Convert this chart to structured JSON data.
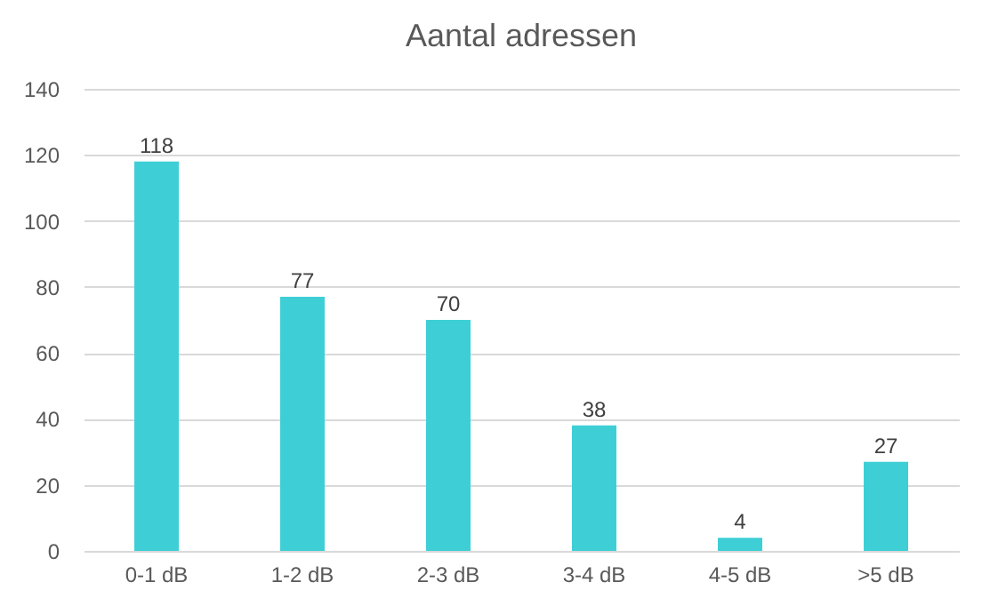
{
  "chart_data": {
    "type": "bar",
    "title": "Aantal adressen",
    "categories": [
      "0-1 dB",
      "1-2 dB",
      "2-3 dB",
      "3-4 dB",
      "4-5 dB",
      ">5 dB"
    ],
    "values": [
      118,
      77,
      70,
      38,
      4,
      27
    ],
    "color": "#3ecfd6",
    "ylim": [
      0,
      140
    ],
    "yticks": [
      0,
      20,
      40,
      60,
      80,
      100,
      120,
      140
    ],
    "grid": "y",
    "data_labels": true
  }
}
